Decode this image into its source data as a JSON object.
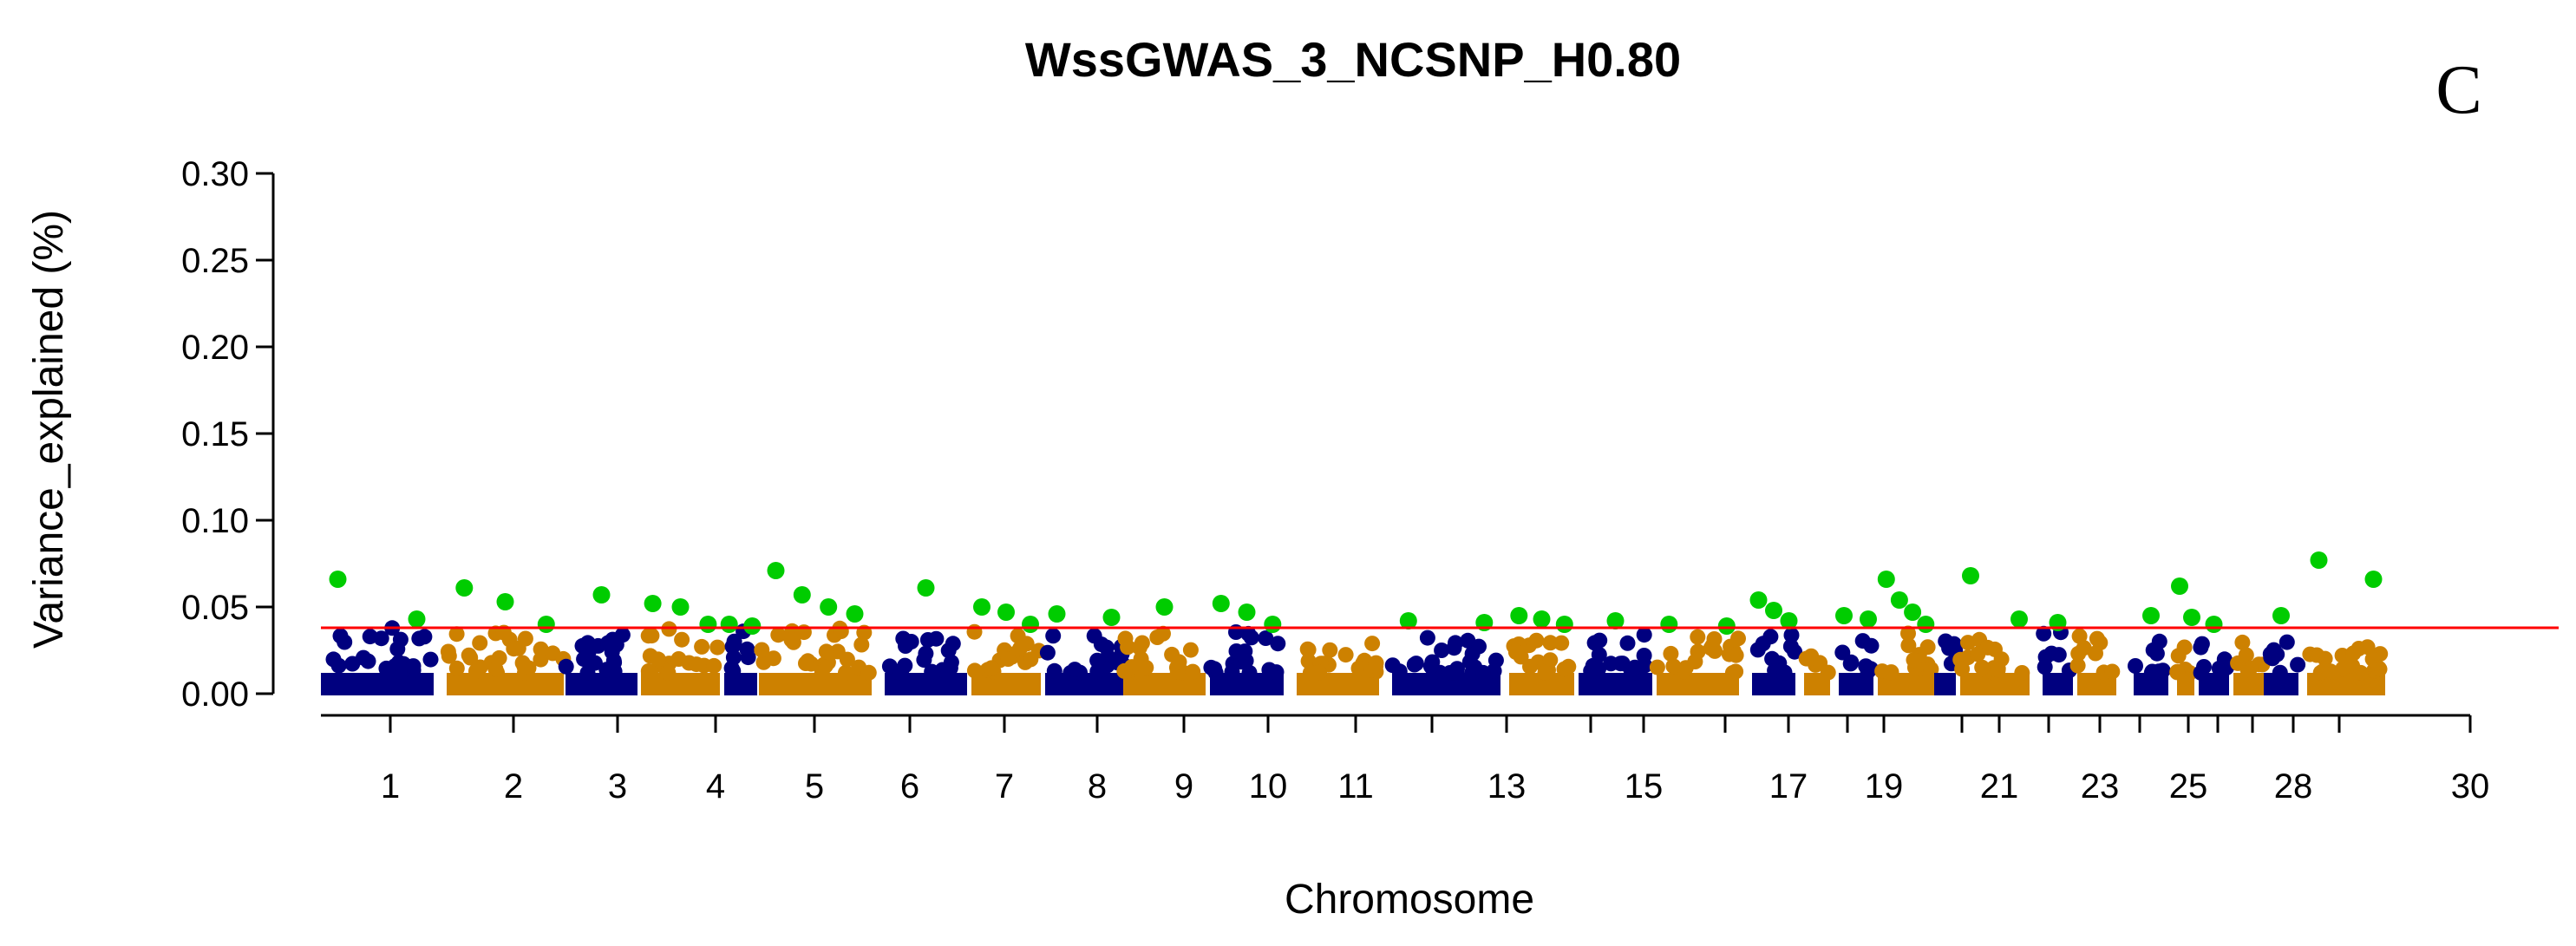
{
  "chart_data": {
    "type": "scatter",
    "title": "WssGWAS_3_NCSNP_H0.80",
    "panel_label": "C",
    "xlabel": "Chromosome",
    "ylabel": "Variance_explained (%)",
    "ylim": [
      0,
      0.3
    ],
    "yticks": [
      "0.00",
      "0.05",
      "0.10",
      "0.15",
      "0.20",
      "0.25",
      "0.30"
    ],
    "x_tick_labels": [
      "1",
      "2",
      "3",
      "4",
      "5",
      "6",
      "7",
      "8",
      "9",
      "10",
      "11",
      "13",
      "15",
      "17",
      "19",
      "21",
      "23",
      "25",
      "28",
      "30"
    ],
    "threshold": {
      "value": 0.038,
      "color": "#ff0000"
    },
    "colors": {
      "odd": "#00007f",
      "even": "#cd8100",
      "highlight": "#00cc00"
    },
    "chromosomes": [
      {
        "chr": "1",
        "label": "1",
        "peak": 0.038,
        "top": [
          0.066,
          0.043
        ]
      },
      {
        "chr": "2",
        "label": "2",
        "peak": 0.037,
        "top": [
          0.061,
          0.053,
          0.04
        ]
      },
      {
        "chr": "3",
        "label": "3",
        "peak": 0.034,
        "top": [
          0.057
        ]
      },
      {
        "chr": "4",
        "label": "4",
        "peak": 0.038,
        "top": [
          0.052,
          0.05,
          0.04
        ]
      },
      {
        "chr": "5",
        "label": "5",
        "peak": 0.037,
        "top": [
          0.04,
          0.039
        ]
      },
      {
        "chr": "6",
        "label": "6",
        "peak": 0.038,
        "top": [
          0.071,
          0.057,
          0.05,
          0.046
        ]
      },
      {
        "chr": "7",
        "label": "7",
        "peak": 0.035,
        "top": [
          0.061
        ]
      },
      {
        "chr": "8",
        "label": "8",
        "peak": 0.036,
        "top": [
          0.05,
          0.047,
          0.04
        ]
      },
      {
        "chr": "9",
        "label": "9",
        "peak": 0.034,
        "top": [
          0.046,
          0.044
        ]
      },
      {
        "chr": "10",
        "label": "10",
        "peak": 0.038,
        "top": [
          0.05
        ]
      },
      {
        "chr": "11",
        "label": "11",
        "peak": 0.037,
        "top": [
          0.052,
          0.047,
          0.04
        ]
      },
      {
        "chr": "12",
        "label": "",
        "peak": 0.03,
        "top": []
      },
      {
        "chr": "13",
        "label": "13",
        "peak": 0.033,
        "top": [
          0.042,
          0.041
        ]
      },
      {
        "chr": "14",
        "label": "",
        "peak": 0.035,
        "top": [
          0.045,
          0.043,
          0.04
        ]
      },
      {
        "chr": "15",
        "label": "15",
        "peak": 0.034,
        "top": [
          0.042
        ]
      },
      {
        "chr": "16",
        "label": "",
        "peak": 0.033,
        "top": [
          0.04,
          0.039
        ]
      },
      {
        "chr": "17",
        "label": "17",
        "peak": 0.037,
        "top": [
          0.054,
          0.048,
          0.042
        ]
      },
      {
        "chr": "18",
        "label": "",
        "peak": 0.035,
        "top": []
      },
      {
        "chr": "19",
        "label": "19",
        "peak": 0.036,
        "top": [
          0.045,
          0.043
        ]
      },
      {
        "chr": "20",
        "label": "",
        "peak": 0.036,
        "top": [
          0.066,
          0.054,
          0.047,
          0.04
        ]
      },
      {
        "chr": "21",
        "label": "21",
        "peak": 0.034,
        "top": []
      },
      {
        "chr": "22",
        "label": "",
        "peak": 0.037,
        "top": [
          0.068,
          0.043
        ]
      },
      {
        "chr": "23",
        "label": "23",
        "peak": 0.038,
        "top": [
          0.041
        ]
      },
      {
        "chr": "24",
        "label": "",
        "peak": 0.038,
        "top": []
      },
      {
        "chr": "25",
        "label": "25",
        "peak": 0.034,
        "top": [
          0.045
        ]
      },
      {
        "chr": "26",
        "label": "",
        "peak": 0.036,
        "top": [
          0.062,
          0.044
        ]
      },
      {
        "chr": "27",
        "label": "",
        "peak": 0.036,
        "top": [
          0.04
        ]
      },
      {
        "chr": "28",
        "label": "28",
        "peak": 0.033,
        "top": []
      },
      {
        "chr": "29",
        "label": "",
        "peak": 0.033,
        "top": [
          0.045
        ]
      },
      {
        "chr": "30",
        "label": "30",
        "peak": 0.028,
        "top": [
          0.077,
          0.066
        ]
      }
    ]
  }
}
